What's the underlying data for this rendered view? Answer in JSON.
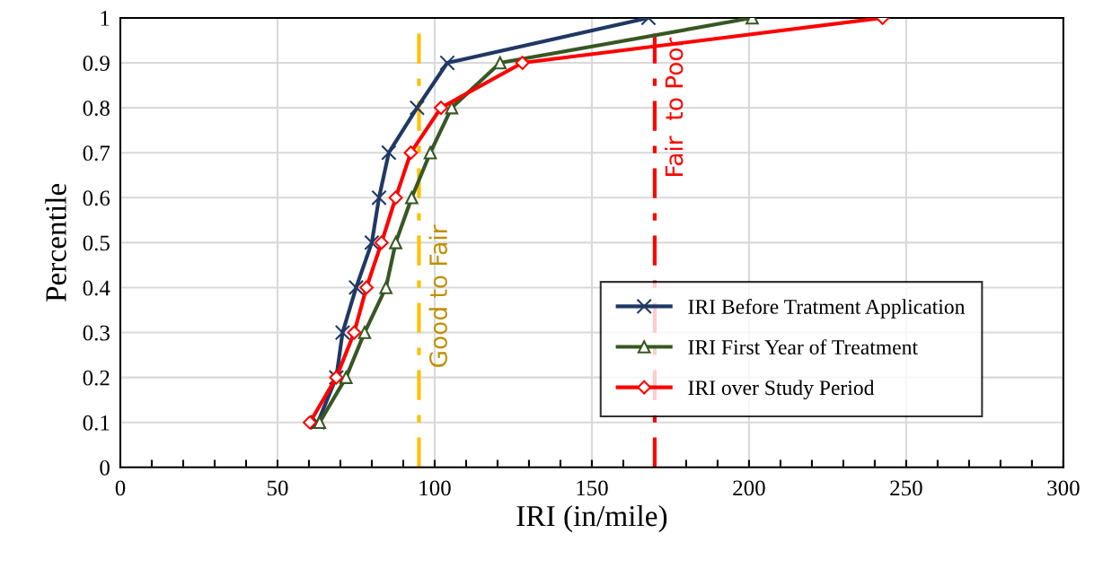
{
  "chart_data": {
    "type": "line",
    "xlabel": "IRI (in/mile)",
    "ylabel": "Percentile",
    "xlim": [
      0,
      300
    ],
    "xticks": [
      0,
      50,
      100,
      150,
      200,
      250,
      300
    ],
    "ylim": [
      0,
      1
    ],
    "yticks": [
      0,
      0.1,
      0.2,
      0.3,
      0.4,
      0.5,
      0.6,
      0.7,
      0.8,
      0.9,
      1
    ],
    "grid": true,
    "legend": "bottom right",
    "series": [
      {
        "name": "IRI Before Tratment Application",
        "color": "#203864",
        "marker": "cross",
        "x": [
          62.8,
          68.7,
          70.7,
          75,
          80,
          82.3,
          85.4,
          94.4,
          104,
          168
        ],
        "values": [
          0.1,
          0.2,
          0.3,
          0.4,
          0.5,
          0.6,
          0.7,
          0.8,
          0.9,
          1
        ]
      },
      {
        "name": "IRI First Year of Treatment",
        "color": "#385723",
        "marker": "triangle",
        "x": [
          63.4,
          71.8,
          77.7,
          84.5,
          87.6,
          92.7,
          98.6,
          105.4,
          120.8,
          201
        ],
        "values": [
          0.1,
          0.2,
          0.3,
          0.4,
          0.5,
          0.6,
          0.7,
          0.8,
          0.9,
          1
        ]
      },
      {
        "name": "IRI over Study Period",
        "color": "#ff0000",
        "marker": "diamond",
        "x": [
          60.3,
          68.7,
          74.4,
          78.3,
          83.1,
          87.6,
          92.4,
          102,
          127.9,
          242.5
        ],
        "values": [
          0.1,
          0.2,
          0.3,
          0.4,
          0.5,
          0.6,
          0.7,
          0.8,
          0.9,
          1
        ]
      }
    ],
    "ref_lines": [
      {
        "axis": "x",
        "value": 95,
        "label": "Good to Fair",
        "color": "#ffc000",
        "line_style": "dashed"
      },
      {
        "axis": "x",
        "value": 170,
        "label": "Fair  to Poor",
        "color": "#ff0000",
        "line_style": "dashed"
      }
    ]
  }
}
